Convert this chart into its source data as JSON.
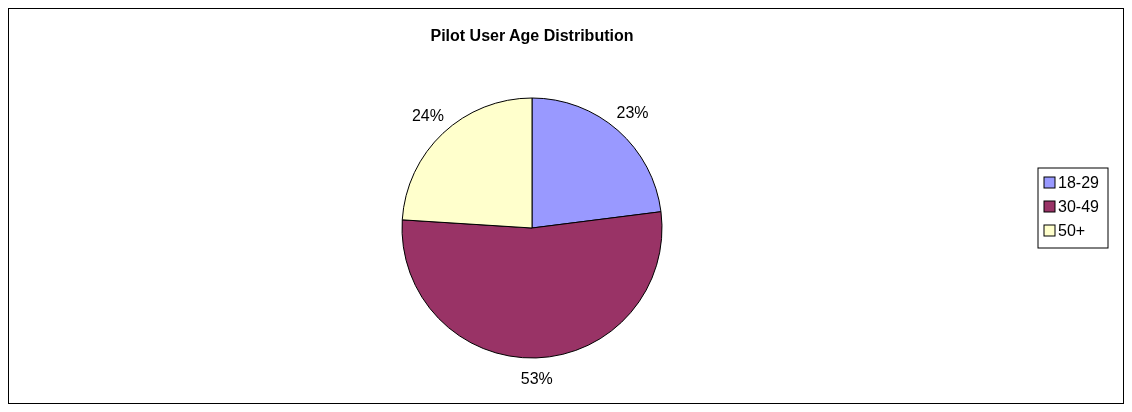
{
  "chart_data": {
    "type": "pie",
    "title": "Pilot User Age Distribution",
    "categories": [
      "18-29",
      "30-49",
      "50+"
    ],
    "values": [
      23,
      53,
      24
    ],
    "value_labels": [
      "23%",
      "53%",
      "24%"
    ],
    "colors": [
      "#9999ff",
      "#993366",
      "#ffffcc"
    ],
    "legend": "right"
  }
}
